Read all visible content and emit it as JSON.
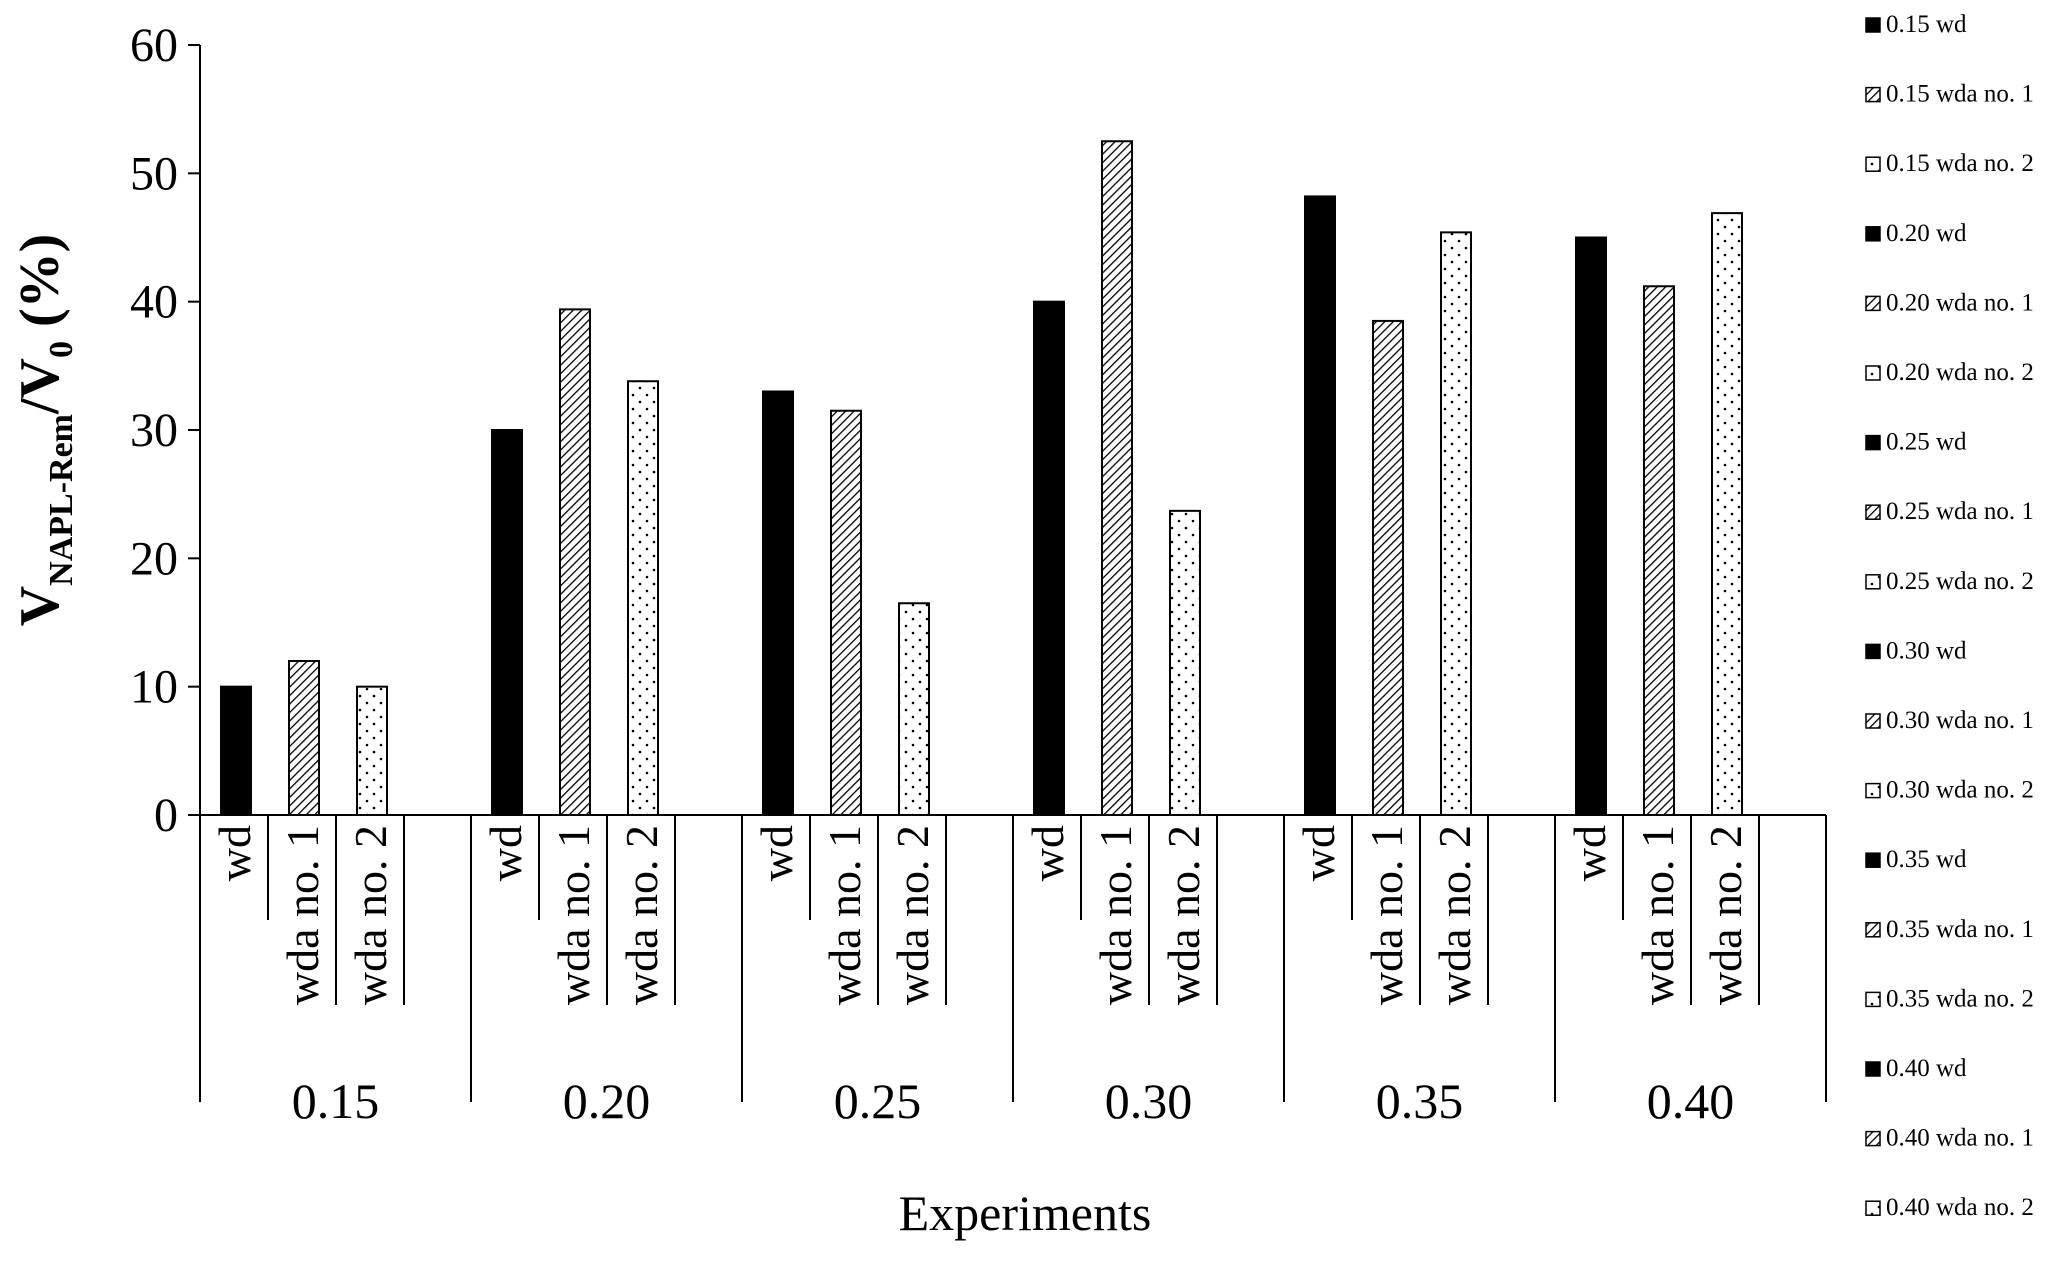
{
  "chart_data": {
    "type": "bar",
    "ylabel": {
      "main": "V",
      "sub1": "NAPL-Rem",
      "mid": "/V",
      "sub2": "0",
      "tail": " (%)"
    },
    "xlabel": "Experiments",
    "ylim": [
      0,
      60
    ],
    "yticks": [
      "0",
      "10",
      "20",
      "30",
      "40",
      "50",
      "60"
    ],
    "groups": [
      "0.15",
      "0.20",
      "0.25",
      "0.30",
      "0.35",
      "0.40"
    ],
    "subcategories": [
      "wd",
      "wda no. 1",
      "wda no. 2"
    ],
    "series": [
      {
        "name": "wd",
        "pattern": "solid",
        "values": [
          10,
          30,
          33,
          40,
          48.2,
          45
        ]
      },
      {
        "name": "wda no. 1",
        "pattern": "hatch",
        "values": [
          12,
          39.4,
          31.5,
          52.5,
          38.5,
          41.2
        ]
      },
      {
        "name": "wda no. 2",
        "pattern": "dots",
        "values": [
          10,
          33.8,
          16.5,
          23.7,
          45.4,
          46.9
        ]
      }
    ],
    "legend": {
      "position": "right",
      "entries": [
        {
          "label": "0.15 wd",
          "pattern": "solid"
        },
        {
          "label": "0.15 wda no. 1",
          "pattern": "hatch"
        },
        {
          "label": "0.15 wda no. 2",
          "pattern": "dots"
        },
        {
          "label": "0.20 wd",
          "pattern": "solid"
        },
        {
          "label": "0.20 wda no. 1",
          "pattern": "hatch"
        },
        {
          "label": "0.20 wda no. 2",
          "pattern": "dots"
        },
        {
          "label": "0.25 wd",
          "pattern": "solid"
        },
        {
          "label": "0.25 wda no. 1",
          "pattern": "hatch"
        },
        {
          "label": "0.25 wda no. 2",
          "pattern": "dots"
        },
        {
          "label": "0.30 wd",
          "pattern": "solid"
        },
        {
          "label": "0.30 wda no. 1",
          "pattern": "hatch"
        },
        {
          "label": "0.30 wda no. 2",
          "pattern": "dots"
        },
        {
          "label": "0.35 wd",
          "pattern": "solid"
        },
        {
          "label": "0.35 wda no. 1",
          "pattern": "hatch"
        },
        {
          "label": "0.35 wda no. 2",
          "pattern": "dots"
        },
        {
          "label": "0.40 wd",
          "pattern": "solid"
        },
        {
          "label": "0.40 wda no. 1",
          "pattern": "hatch"
        },
        {
          "label": "0.40 wda no. 2",
          "pattern": "dots"
        }
      ]
    },
    "grid": false,
    "colors": {
      "bar_solid": "#000000",
      "outline": "#000000",
      "background": "#ffffff"
    }
  }
}
